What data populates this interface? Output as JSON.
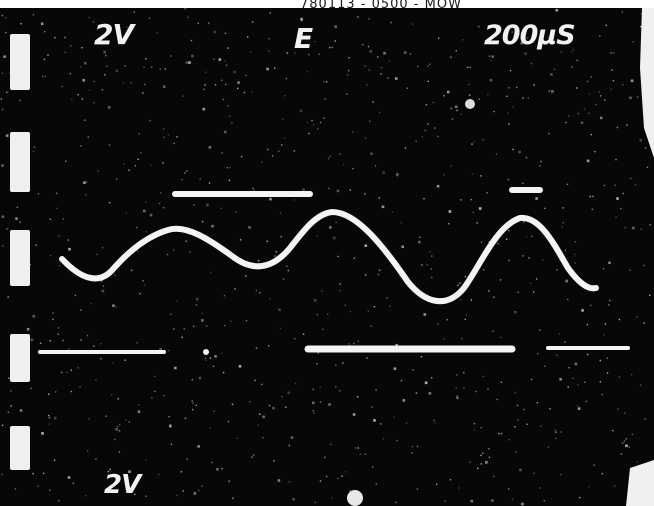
{
  "photo": {
    "caption": "780113 - 0500 - MOW",
    "subject": "oscilloscope-trace-photograph",
    "trace_color": "#f4f4f4",
    "screen_color": "#070707"
  },
  "scope": {
    "ch1_scale": "2V",
    "trigger_mode": "E",
    "timebase": "200µS",
    "ch2_scale": "2V"
  }
}
